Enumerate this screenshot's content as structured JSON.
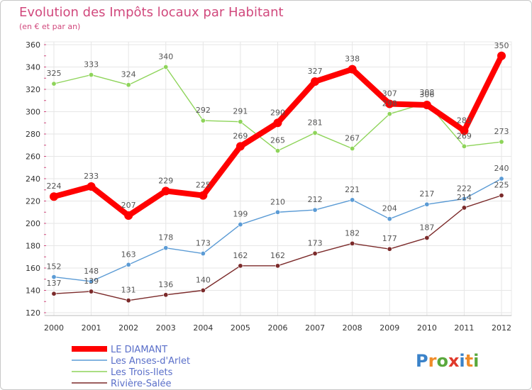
{
  "chart_data": {
    "type": "line",
    "title": "Evolution des Impôts locaux par Habitant",
    "subtitle": "(en € et par an)",
    "xlabel": "",
    "ylabel": "",
    "x": [
      "2000",
      "2001",
      "2002",
      "2003",
      "2004",
      "2005",
      "2006",
      "2007",
      "2008",
      "2009",
      "2010",
      "2011",
      "2012"
    ],
    "ylim": [
      120,
      360
    ],
    "yticks": [
      120,
      140,
      160,
      180,
      200,
      220,
      240,
      260,
      280,
      300,
      320,
      340,
      360
    ],
    "grid": true,
    "legend": "bottom-left",
    "series": [
      {
        "name": "LE DIAMANT",
        "color": "#ff0000",
        "values": [
          224,
          233,
          207,
          229,
          225,
          269,
          290,
          327,
          338,
          307,
          306,
          283,
          350
        ]
      },
      {
        "name": "Les Anses-d'Arlet",
        "color": "#5b9bd5",
        "values": [
          152,
          148,
          163,
          178,
          173,
          199,
          210,
          212,
          221,
          204,
          217,
          222,
          240
        ]
      },
      {
        "name": "Les Trois-Ilets",
        "color": "#8ed45a",
        "values": [
          325,
          333,
          324,
          340,
          292,
          291,
          265,
          281,
          267,
          298,
          308,
          269,
          273
        ]
      },
      {
        "name": "Rivière-Salée",
        "color": "#7b2a2a",
        "values": [
          137,
          139,
          131,
          136,
          140,
          162,
          162,
          173,
          182,
          177,
          187,
          214,
          225
        ]
      }
    ]
  },
  "brand": {
    "text": "Proxiti"
  }
}
